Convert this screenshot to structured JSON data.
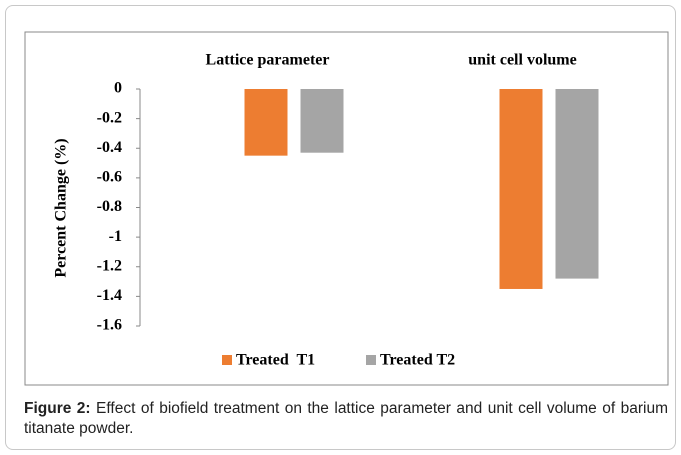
{
  "chart_data": {
    "type": "bar",
    "ylabel": "Percent Change (%)",
    "categories": [
      "Lattice parameter",
      "unit cell volume"
    ],
    "series": [
      {
        "name": "Treated  T1",
        "color": "#ed7d31",
        "values": [
          -0.45,
          -1.35
        ]
      },
      {
        "name": "Treated T2",
        "color": "#a5a5a5",
        "values": [
          -0.43,
          -1.28
        ]
      }
    ],
    "ylim": [
      -1.6,
      0
    ],
    "yticks": [
      0,
      -0.2,
      -0.4,
      -0.6,
      -0.8,
      -1,
      -1.2,
      -1.4,
      -1.6
    ],
    "grid": false,
    "legend": "bottom"
  },
  "caption": {
    "label": "Figure 2:",
    "text": "Effect of biofield treatment on the lattice parameter and unit cell volume of barium titanate powder."
  }
}
